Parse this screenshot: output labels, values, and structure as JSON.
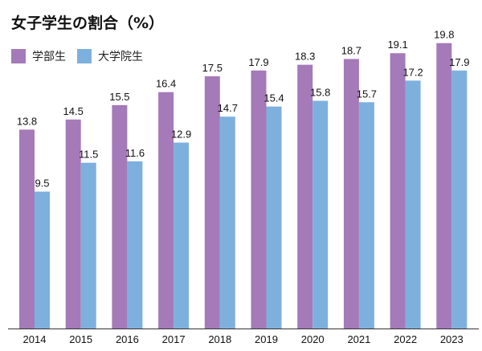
{
  "chart_data": {
    "type": "bar",
    "title": "女子学生の割合（%）",
    "categories": [
      "2014",
      "2015",
      "2016",
      "2017",
      "2018",
      "2019",
      "2020",
      "2021",
      "2022",
      "2023"
    ],
    "series": [
      {
        "name": "学部生",
        "color": "#a47ab8",
        "values": [
          13.8,
          14.5,
          15.5,
          16.4,
          17.5,
          17.9,
          18.3,
          18.7,
          19.1,
          19.8
        ]
      },
      {
        "name": "大学院生",
        "color": "#7eb0de",
        "values": [
          9.5,
          11.5,
          11.6,
          12.9,
          14.7,
          15.4,
          15.8,
          15.7,
          17.2,
          17.9
        ]
      }
    ],
    "xlabel": "",
    "ylabel": "",
    "ylim": [
      0,
      21.9
    ],
    "grid": false,
    "legend_position": "top-left"
  }
}
